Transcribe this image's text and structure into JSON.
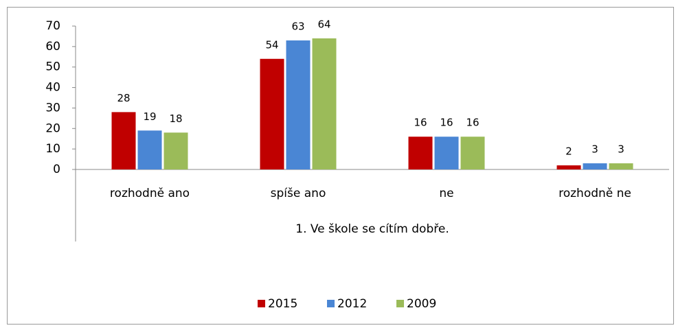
{
  "chart_data": {
    "type": "bar",
    "categories": [
      "rozhodně ano",
      "spíše ano",
      "ne",
      "rozhodně ne"
    ],
    "xlabel": "1. Ve škole se cítím dobře.",
    "series": [
      {
        "name": "2015",
        "color": "#c00000",
        "values": [
          28,
          54,
          16,
          2
        ]
      },
      {
        "name": "2012",
        "color": "#4a86d4",
        "values": [
          19,
          63,
          16,
          3
        ]
      },
      {
        "name": "2009",
        "color": "#9bbb59",
        "values": [
          18,
          64,
          16,
          3
        ]
      }
    ],
    "ylim": [
      0,
      70
    ],
    "yticks": [
      0,
      10,
      20,
      30,
      40,
      50,
      60,
      70
    ],
    "legend": "bottom",
    "grid": false
  }
}
